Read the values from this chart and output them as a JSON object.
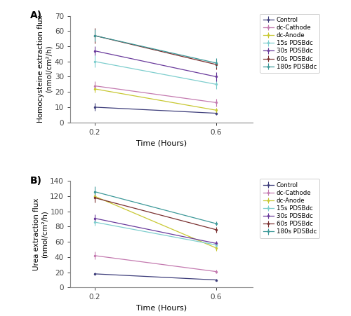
{
  "time": [
    0.2,
    0.6
  ],
  "panel_A": {
    "title": "A)",
    "ylabel": "Homocysteine extraction flux\n(nmol/cm²/h)",
    "xlabel": "Time (Hours)",
    "ylim": [
      0,
      70
    ],
    "yticks": [
      0,
      10,
      20,
      30,
      40,
      50,
      60,
      70
    ],
    "series": [
      {
        "label": "Control",
        "color": "#3d3d7a",
        "y": [
          10.0,
          6.0
        ],
        "yerr": [
          2.5,
          1.0
        ]
      },
      {
        "label": "dc-Cathode",
        "color": "#c47ab0",
        "y": [
          24.0,
          13.0
        ],
        "yerr": [
          3.0,
          2.5
        ]
      },
      {
        "label": "dc-Anode",
        "color": "#c8c832",
        "y": [
          22.0,
          8.0
        ],
        "yerr": [
          2.5,
          1.5
        ]
      },
      {
        "label": "15s PDSBdc",
        "color": "#7ecece",
        "y": [
          40.0,
          25.0
        ],
        "yerr": [
          4.0,
          3.0
        ]
      },
      {
        "label": "30s PDSBdc",
        "color": "#6a3b9c",
        "y": [
          47.0,
          30.0
        ],
        "yerr": [
          3.0,
          3.0
        ]
      },
      {
        "label": "60s PDSBdc",
        "color": "#7a3030",
        "y": [
          57.0,
          38.0
        ],
        "yerr": [
          5.0,
          3.0
        ]
      },
      {
        "label": "180s PDSBdc",
        "color": "#3d9999",
        "y": [
          57.0,
          39.0
        ],
        "yerr": [
          4.0,
          3.0
        ]
      }
    ]
  },
  "panel_B": {
    "title": "B)",
    "ylabel": "Urea extraction flux\n(nmol/cm²/h)",
    "xlabel": "Time (Hours)",
    "ylim": [
      0,
      140
    ],
    "yticks": [
      0,
      20,
      40,
      60,
      80,
      100,
      120,
      140
    ],
    "series": [
      {
        "label": "Control",
        "color": "#3d3d7a",
        "y": [
          18.0,
          10.0
        ],
        "yerr": [
          1.5,
          1.0
        ]
      },
      {
        "label": "dc-Cathode",
        "color": "#c47ab0",
        "y": [
          42.0,
          21.0
        ],
        "yerr": [
          5.0,
          2.5
        ]
      },
      {
        "label": "dc-Anode",
        "color": "#c8c832",
        "y": [
          120.0,
          52.0
        ],
        "yerr": [
          5.0,
          3.5
        ]
      },
      {
        "label": "15s PDSBdc",
        "color": "#7ecece",
        "y": [
          86.0,
          56.0
        ],
        "yerr": [
          5.0,
          4.0
        ]
      },
      {
        "label": "30s PDSBdc",
        "color": "#6a3b9c",
        "y": [
          91.0,
          58.0
        ],
        "yerr": [
          5.0,
          3.0
        ]
      },
      {
        "label": "60s PDSBdc",
        "color": "#7a3030",
        "y": [
          118.0,
          76.0
        ],
        "yerr": [
          6.0,
          3.5
        ]
      },
      {
        "label": "180s PDSBdc",
        "color": "#3d9999",
        "y": [
          126.0,
          84.0
        ],
        "yerr": [
          7.0,
          3.0
        ]
      }
    ]
  }
}
